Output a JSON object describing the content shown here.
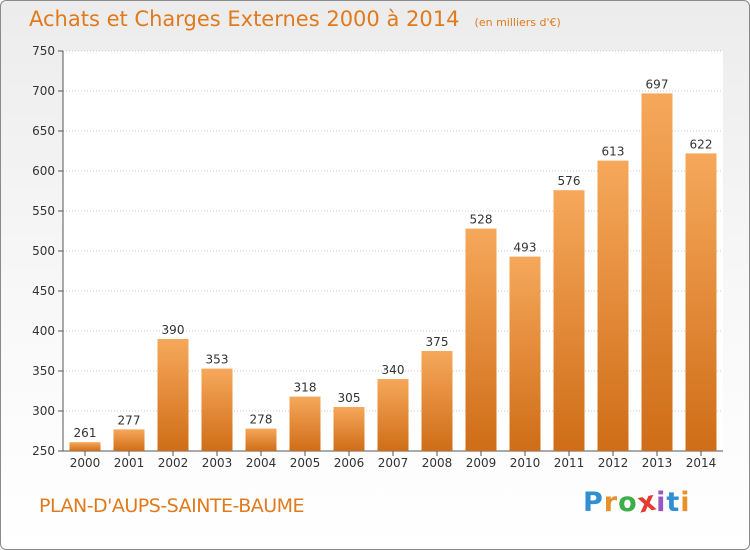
{
  "header": {
    "title": "Achats et Charges Externes 2000 à 2014",
    "unit": "(en milliers d'€)"
  },
  "footer": {
    "commune": "PLAN-D'AUPS-SAINTE-BAUME",
    "brand_letters": [
      "P",
      "r",
      "o",
      "x",
      "i",
      "t",
      "i"
    ],
    "brand_colors": [
      "#2f8fd0",
      "#e8902a",
      "#3cae4a",
      "#e63b2e",
      "#9a57c0",
      "#2f8fd0",
      "#e8902a"
    ]
  },
  "colors": {
    "bar_light": "#f6a85a",
    "bar_dark": "#cf6d18",
    "accent": "#e07a1c"
  },
  "chart_data": {
    "type": "bar",
    "categories": [
      "2000",
      "2001",
      "2002",
      "2003",
      "2004",
      "2005",
      "2006",
      "2007",
      "2008",
      "2009",
      "2010",
      "2011",
      "2012",
      "2013",
      "2014"
    ],
    "values": [
      261,
      277,
      390,
      353,
      278,
      318,
      305,
      340,
      375,
      528,
      493,
      576,
      613,
      697,
      622
    ],
    "title": "Achats et Charges Externes 2000 à 2014",
    "xlabel": "",
    "ylabel": "",
    "ylim": [
      250,
      750
    ],
    "yticks": [
      250,
      300,
      350,
      400,
      450,
      500,
      550,
      600,
      650,
      700,
      750
    ],
    "grid": true,
    "data_labels": true
  }
}
